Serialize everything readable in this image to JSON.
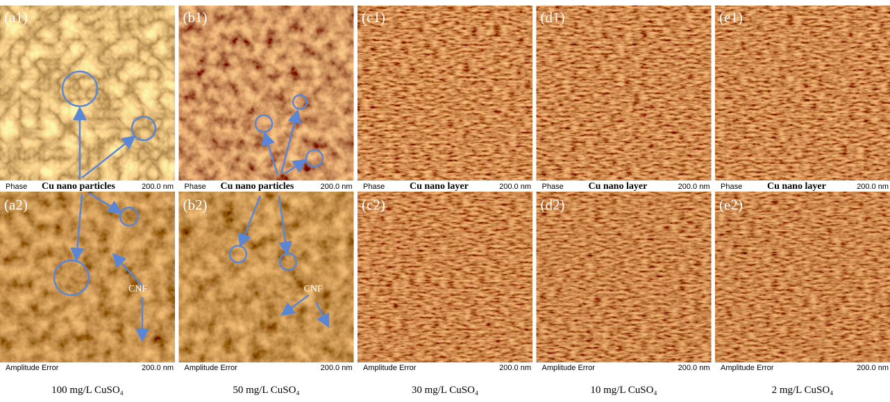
{
  "panels": [
    {
      "top_label": "(a1)",
      "top_axis": "Phase",
      "top_note": "Cu nano particles",
      "top_scale": "200.0 nm",
      "bottom_label": "(a2)",
      "bottom_axis": "Amplitude Error",
      "bottom_scale": "200.0 nm",
      "bottom_note": "CNF",
      "caption": "100 mg/L CuSO₄"
    },
    {
      "top_label": "(b1)",
      "top_axis": "Phase",
      "top_note": "Cu nano particles",
      "top_scale": "200.0 nm",
      "bottom_label": "(b2)",
      "bottom_axis": "Amplitude Error",
      "bottom_scale": "200.0 nm",
      "bottom_note": "CNF",
      "caption": "50 mg/L CuSO₄"
    },
    {
      "top_label": "(c1)",
      "top_axis": "Phase",
      "top_note": "Cu nano layer",
      "top_scale": "200.0 nm",
      "bottom_label": "(c2)",
      "bottom_axis": "Amplitude Error",
      "bottom_scale": "200.0 nm",
      "caption": "30 mg/L CuSO₄"
    },
    {
      "top_label": "(d1)",
      "top_axis": "Phase",
      "top_note": "Cu nano layer",
      "top_scale": "200.0 nm",
      "bottom_label": "(d2)",
      "bottom_axis": "Amplitude Error",
      "bottom_scale": "200.0 nm",
      "caption": "10 mg/L CuSO₄"
    },
    {
      "top_label": "(e1)",
      "top_axis": "Phase",
      "top_note": "Cu nano layer",
      "top_scale": "200.0 nm",
      "bottom_label": "(e2)",
      "bottom_axis": "Amplitude Error",
      "bottom_scale": "200.0 nm",
      "caption": "2 mg/L CuSO₄"
    }
  ]
}
